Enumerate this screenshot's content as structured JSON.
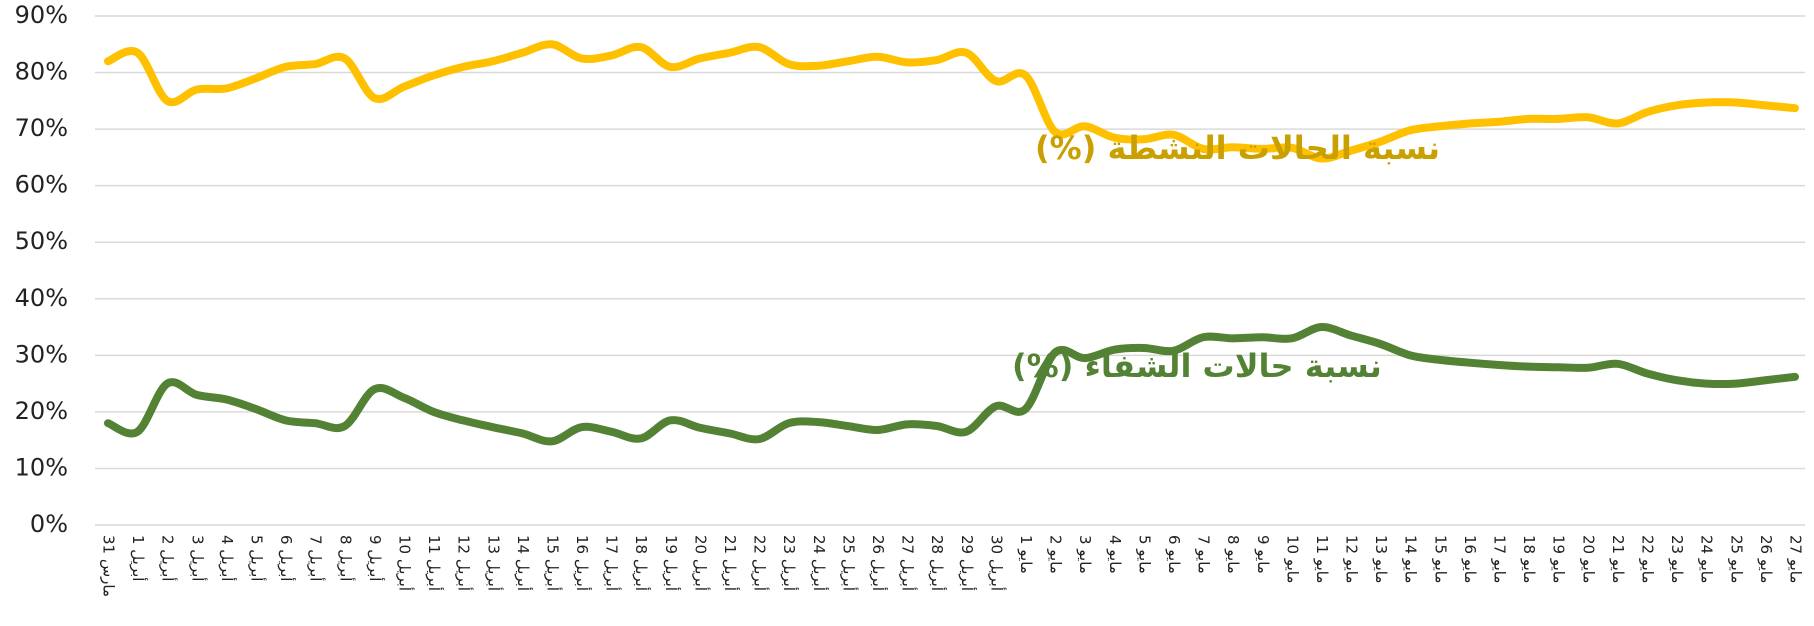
{
  "chart_data": {
    "type": "line",
    "categories": [
      "31 مارس",
      "1 أبريل",
      "2 أبريل",
      "3 أبريل",
      "4 أبريل",
      "5 أبريل",
      "6 أبريل",
      "7 أبريل",
      "8 أبريل",
      "9 أبريل",
      "10 أبريل",
      "11 أبريل",
      "12 أبريل",
      "13 أبريل",
      "14 أبريل",
      "15 أبريل",
      "16 أبريل",
      "17 أبريل",
      "18 أبريل",
      "19 أبريل",
      "20 أبريل",
      "21 أبريل",
      "22 أبريل",
      "23 أبريل",
      "24 أبريل",
      "25 أبريل",
      "26 أبريل",
      "27 أبريل",
      "28 أبريل",
      "29 أبريل",
      "30 أبريل",
      "1 مايو",
      "2 مايو",
      "3 مايو",
      "4 مايو",
      "5 مايو",
      "6 مايو",
      "7 مايو",
      "8 مايو",
      "9 مايو",
      "10 مايو",
      "11 مايو",
      "12 مايو",
      "13 مايو",
      "14 مايو",
      "15 مايو",
      "16 مايو",
      "17 مايو",
      "18 مايو",
      "19 مايو",
      "20 مايو",
      "21 مايو",
      "22 مايو",
      "23 مايو",
      "24 مايو",
      "25 مايو",
      "26 مايو",
      "27 مايو"
    ],
    "series": [
      {
        "name": "نسبة الحالات النشطة (%)",
        "color": "#ffc000",
        "label_color": "#c9a000",
        "values": [
          82,
          83.5,
          75,
          77,
          77.2,
          79,
          81,
          81.5,
          82.5,
          75.5,
          77.5,
          79.5,
          81,
          82,
          83.5,
          85,
          82.5,
          83,
          84.5,
          81,
          82.5,
          83.5,
          84.5,
          81.5,
          81.2,
          82,
          82.8,
          81.8,
          82.2,
          83.5,
          78.5,
          79.5,
          69.5,
          70.5,
          68.5,
          68.2,
          69,
          66.5,
          66.8,
          66.5,
          66.7,
          64.8,
          66.2,
          67.8,
          69.8,
          70.5,
          71,
          71.3,
          71.8,
          71.8,
          72.1,
          71,
          73,
          74.2,
          74.7,
          74.7,
          74.2,
          73.7
        ]
      },
      {
        "name": "نسبة حالات الشفاء (%)",
        "color": "#548235",
        "label_color": "#548235",
        "values": [
          18,
          16.5,
          25,
          23,
          22.2,
          20.5,
          18.5,
          18,
          17.5,
          24,
          22.5,
          20,
          18.5,
          17.3,
          16.2,
          14.8,
          17.3,
          16.5,
          15.3,
          18.5,
          17.2,
          16.2,
          15.2,
          18,
          18.2,
          17.5,
          16.8,
          17.8,
          17.5,
          16.5,
          21,
          20.5,
          30.5,
          29.5,
          31,
          31.3,
          30.8,
          33.2,
          33,
          33.2,
          33,
          35,
          33.5,
          32,
          30,
          29.2,
          28.7,
          28.3,
          28,
          27.9,
          27.8,
          28.5,
          26.8,
          25.6,
          25,
          25,
          25.6,
          26.2
        ]
      }
    ],
    "ylim": [
      0,
      90
    ],
    "yticks": [
      {
        "value": 0,
        "label": "0%"
      },
      {
        "value": 10,
        "label": "10%"
      },
      {
        "value": 20,
        "label": "20%"
      },
      {
        "value": 30,
        "label": "30%"
      },
      {
        "value": 40,
        "label": "40%"
      },
      {
        "value": 50,
        "label": "50%"
      },
      {
        "value": 60,
        "label": "60%"
      },
      {
        "value": 70,
        "label": "70%"
      },
      {
        "value": 80,
        "label": "80%"
      },
      {
        "value": 90,
        "label": "90%"
      }
    ],
    "grid": true
  }
}
